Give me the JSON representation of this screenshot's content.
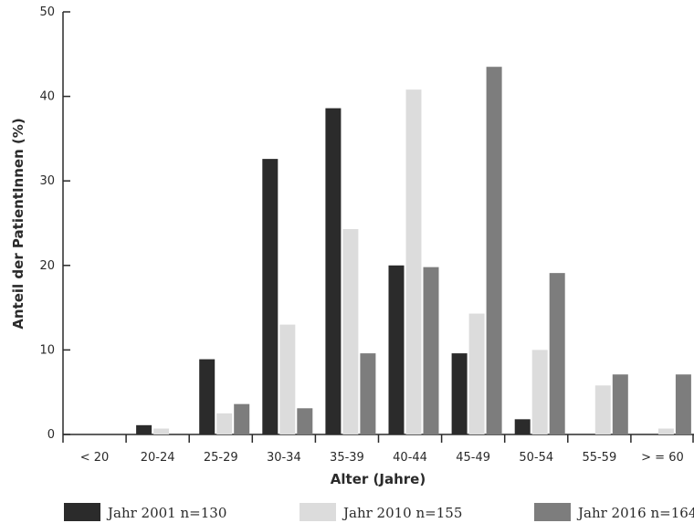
{
  "chart_data": {
    "type": "bar",
    "title": "",
    "xlabel": "Alter (Jahre)",
    "ylabel": "Anteil der PatientInnen (%)",
    "ylim": [
      0,
      50
    ],
    "yticks": [
      0,
      10,
      20,
      30,
      40,
      50
    ],
    "categories": [
      "< 20",
      "20-24",
      "25-29",
      "30-34",
      "35-39",
      "40-44",
      "45-49",
      "50-54",
      "55-59",
      "> = 60"
    ],
    "grid": false,
    "legend_position": "bottom",
    "series": [
      {
        "name": "Jahr 2001 n=130",
        "color": "#2b2b2b",
        "values": [
          0,
          1.1,
          8.9,
          32.6,
          38.6,
          20.0,
          9.6,
          1.8,
          0,
          0
        ]
      },
      {
        "name": "Jahr 2010 n=155",
        "color": "#dcdcdc",
        "values": [
          0,
          0.7,
          2.5,
          13.0,
          24.3,
          40.8,
          14.3,
          10.0,
          5.8,
          0.7
        ]
      },
      {
        "name": "Jahr 2016 n=164",
        "color": "#7d7d7d",
        "values": [
          0,
          0,
          3.6,
          3.1,
          9.6,
          19.8,
          43.5,
          19.1,
          7.1,
          7.1
        ]
      }
    ]
  }
}
